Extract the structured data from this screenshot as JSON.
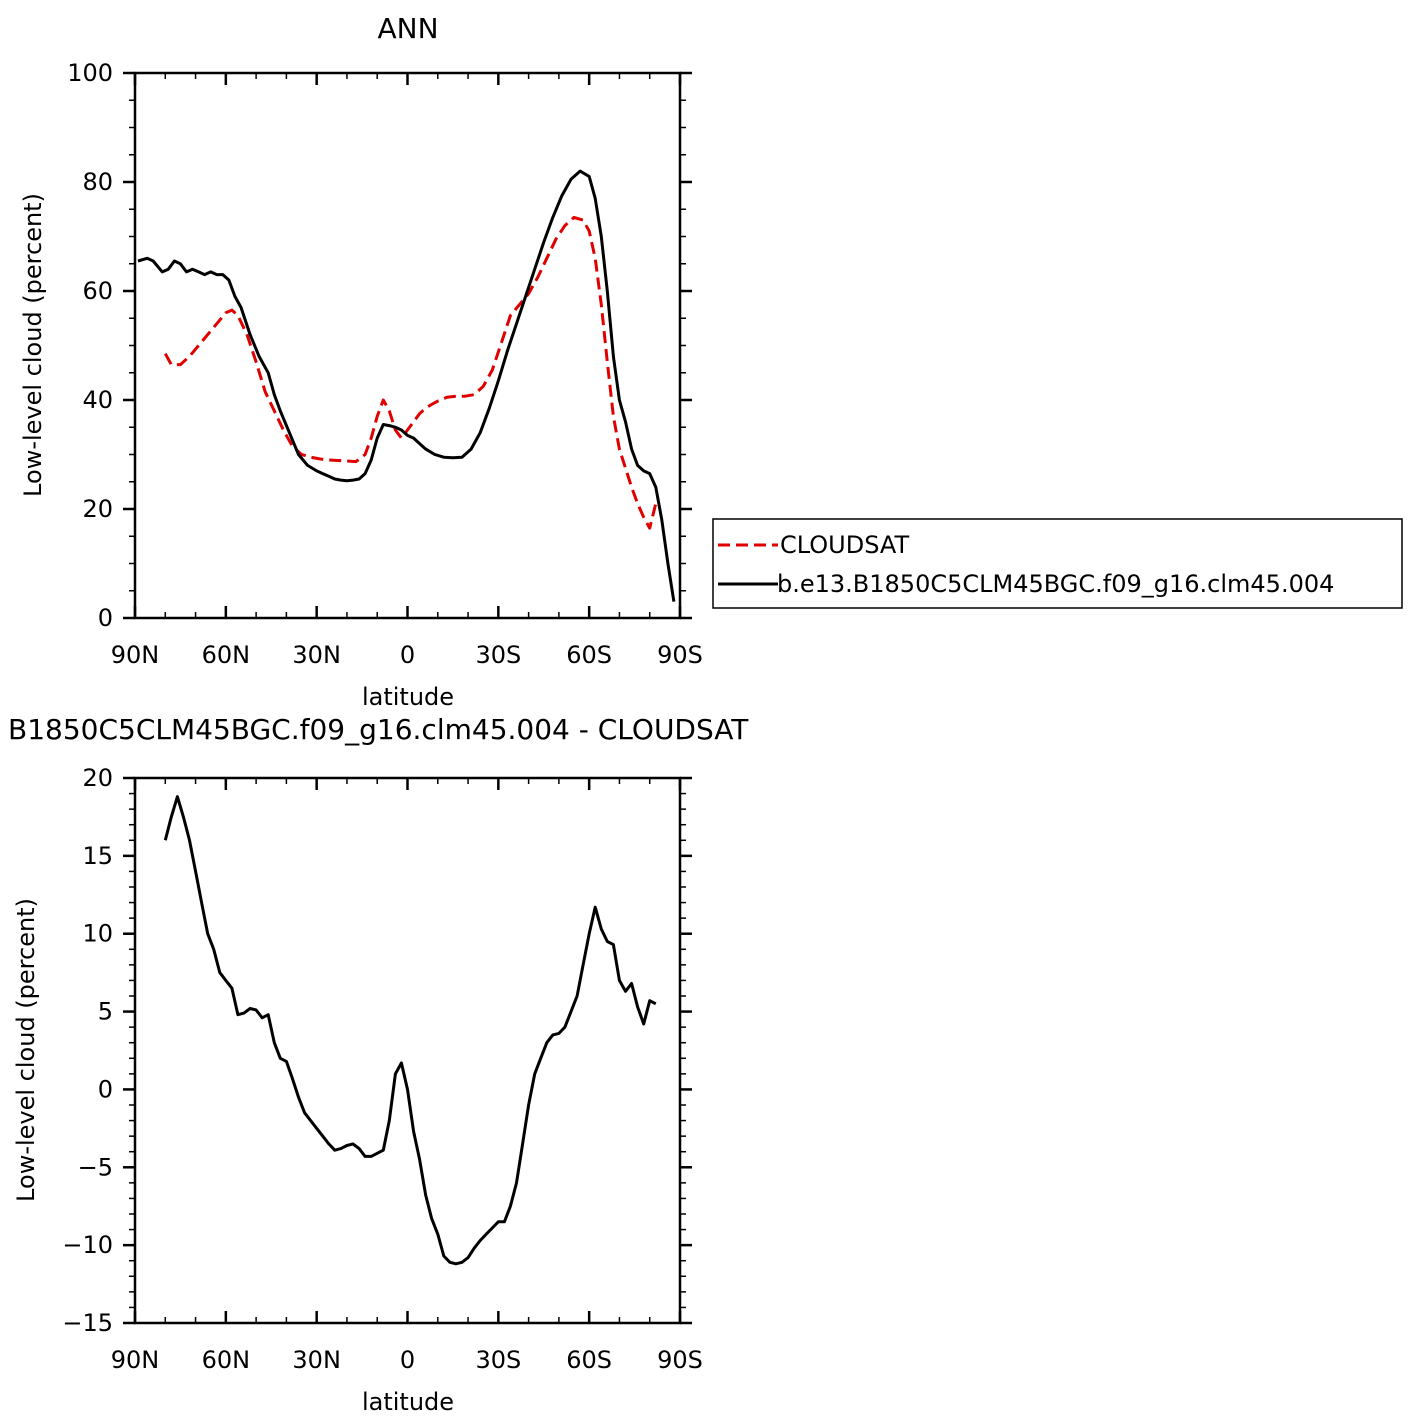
{
  "chart_data": [
    {
      "type": "line",
      "title": "ANN",
      "xlabel": "latitude",
      "ylabel": "Low-level cloud (percent)",
      "xlim": [
        -90,
        90
      ],
      "ylim": [
        0,
        100
      ],
      "x_direction": "90N on left to 90S on right (x = degrees south, negative = north)",
      "x_tick_values": [
        -90,
        -60,
        -30,
        0,
        30,
        60,
        90
      ],
      "x_ticks": [
        "90N",
        "60N",
        "30N",
        "0",
        "30S",
        "60S",
        "90S"
      ],
      "y_ticks": [
        "0",
        "20",
        "40",
        "60",
        "80",
        "100"
      ],
      "legend_position": "right, outside plot",
      "series": [
        {
          "name": "CLOUDSAT",
          "color": "#e00000",
          "dash": "dashed",
          "x": [
            -80,
            -78,
            -75,
            -72,
            -69,
            -66,
            -63,
            -60,
            -58,
            -56,
            -53,
            -50,
            -47,
            -44,
            -41,
            -38,
            -35,
            -32,
            -29,
            -26,
            -23,
            -20,
            -17,
            -14,
            -12,
            -10,
            -8,
            -6,
            -4,
            -2,
            0,
            2,
            4,
            6,
            8,
            10,
            13,
            16,
            19,
            22,
            25,
            28,
            31,
            34,
            37,
            40,
            43,
            46,
            49,
            52,
            55,
            58,
            60,
            62,
            64,
            66,
            68,
            70,
            72,
            74,
            76,
            78,
            80,
            82
          ],
          "y": [
            48.5,
            46.5,
            46.5,
            48,
            50,
            52,
            54,
            56,
            56.5,
            55.5,
            52,
            47,
            41.5,
            38,
            34.5,
            31.5,
            30,
            29.5,
            29.2,
            29,
            28.9,
            28.8,
            28.7,
            30,
            33,
            37,
            40,
            38,
            34.5,
            33,
            34.5,
            36,
            37.5,
            38.5,
            39.2,
            39.8,
            40.5,
            40.7,
            40.7,
            41,
            42.5,
            45.5,
            50.5,
            55.5,
            57.5,
            59.5,
            62.5,
            66,
            69.5,
            72,
            73.5,
            73,
            71,
            66,
            57.5,
            47,
            37,
            31,
            27.5,
            24,
            21,
            18.5,
            16.5,
            21
          ]
        },
        {
          "name": "b.e13.B1850C5CLM45BGC.f09_g16.clm45.004",
          "color": "#000000",
          "dash": "solid",
          "x": [
            -89,
            -86,
            -84,
            -81,
            -79,
            -77,
            -75,
            -73,
            -71,
            -69,
            -67,
            -65,
            -63,
            -61,
            -59,
            -57,
            -55,
            -52,
            -49,
            -46,
            -44,
            -42,
            -39,
            -36,
            -33,
            -30,
            -28,
            -26,
            -24,
            -22,
            -20,
            -18,
            -16,
            -14,
            -12,
            -10,
            -8,
            -6,
            -4,
            -2,
            0,
            2,
            4,
            6,
            9,
            12,
            15,
            18,
            21,
            24,
            27,
            30,
            33,
            36,
            39,
            42,
            45,
            48,
            51,
            54,
            57,
            60,
            62,
            64,
            66,
            68,
            70,
            72,
            74,
            76,
            78,
            80,
            82,
            84,
            86,
            88
          ],
          "y": [
            65.5,
            66,
            65.5,
            63.5,
            64,
            65.5,
            65,
            63.5,
            64,
            63.5,
            63,
            63.5,
            63,
            63,
            62,
            59,
            57,
            52,
            48,
            45,
            41,
            38,
            34,
            30,
            28,
            27,
            26.5,
            26,
            25.5,
            25.3,
            25.2,
            25.3,
            25.5,
            26.5,
            29,
            33,
            35.5,
            35.3,
            35,
            34.5,
            33.5,
            33,
            32,
            31,
            30,
            29.5,
            29.4,
            29.5,
            31,
            34,
            38.5,
            43.5,
            49,
            54,
            59,
            64,
            69,
            73.5,
            77.5,
            80.5,
            82,
            81,
            77,
            70,
            60,
            48,
            40,
            36,
            31,
            28,
            27,
            26.5,
            24,
            18,
            10,
            3
          ]
        }
      ]
    },
    {
      "type": "line",
      "title": "B1850C5CLM45BGC.f09_g16.clm45.004 - CLOUDSAT",
      "xlabel": "latitude",
      "ylabel": "Low-level cloud (percent)",
      "xlim": [
        -90,
        90
      ],
      "ylim": [
        -15,
        20
      ],
      "x_direction": "90N on left to 90S on right (x = degrees south, negative = north)",
      "x_tick_values": [
        -90,
        -60,
        -30,
        0,
        30,
        60,
        90
      ],
      "x_ticks": [
        "90N",
        "60N",
        "30N",
        "0",
        "30S",
        "60S",
        "90S"
      ],
      "y_ticks": [
        "-15",
        "-10",
        "-5",
        "0",
        "5",
        "10",
        "15",
        "20"
      ],
      "series": [
        {
          "color": "#000000",
          "dash": "solid",
          "x": [
            -80,
            -78,
            -76,
            -74,
            -72,
            -70,
            -68,
            -66,
            -64,
            -62,
            -60,
            -58,
            -56,
            -54,
            -52,
            -50,
            -48,
            -46,
            -44,
            -42,
            -40,
            -38,
            -36,
            -34,
            -32,
            -30,
            -28,
            -26,
            -24,
            -22,
            -20,
            -18,
            -16,
            -14,
            -12,
            -10,
            -8,
            -6,
            -4,
            -2,
            0,
            2,
            4,
            6,
            8,
            10,
            12,
            14,
            16,
            18,
            20,
            22,
            24,
            26,
            28,
            30,
            32,
            34,
            36,
            38,
            40,
            42,
            44,
            46,
            48,
            50,
            52,
            54,
            56,
            58,
            60,
            62,
            64,
            66,
            68,
            70,
            72,
            74,
            76,
            78,
            80,
            82
          ],
          "y": [
            16,
            17.5,
            18.8,
            17.5,
            16,
            14,
            12,
            10,
            9,
            7.5,
            7,
            6.5,
            4.8,
            4.9,
            5.2,
            5.1,
            4.6,
            4.8,
            3,
            2,
            1.8,
            0.7,
            -0.5,
            -1.5,
            -2,
            -2.5,
            -3,
            -3.5,
            -3.9,
            -3.8,
            -3.6,
            -3.5,
            -3.8,
            -4.3,
            -4.3,
            -4.1,
            -3.9,
            -2,
            1,
            1.7,
            0,
            -2.7,
            -4.5,
            -6.8,
            -8.3,
            -9.3,
            -10.7,
            -11.1,
            -11.2,
            -11.1,
            -10.8,
            -10.2,
            -9.7,
            -9.3,
            -8.9,
            -8.5,
            -8.5,
            -7.5,
            -6,
            -3.5,
            -1,
            1,
            2,
            3,
            3.5,
            3.6,
            4,
            5,
            6,
            8,
            10,
            11.7,
            10.3,
            9.5,
            9.3,
            7,
            6.3,
            6.8,
            5.3,
            4.2,
            5.7,
            5.5
          ]
        }
      ]
    }
  ],
  "panels": {
    "top": {
      "title": "ANN",
      "xlabel": "latitude",
      "ylabel": "Low-level cloud (percent)",
      "legend": [
        "CLOUDSAT",
        "b.e13.B1850C5CLM45BGC.f09_g16.clm45.004"
      ]
    },
    "bottom": {
      "title": "B1850C5CLM45BGC.f09_g16.clm45.004 - CLOUDSAT",
      "xlabel": "latitude",
      "ylabel": "Low-level cloud (percent)"
    }
  }
}
